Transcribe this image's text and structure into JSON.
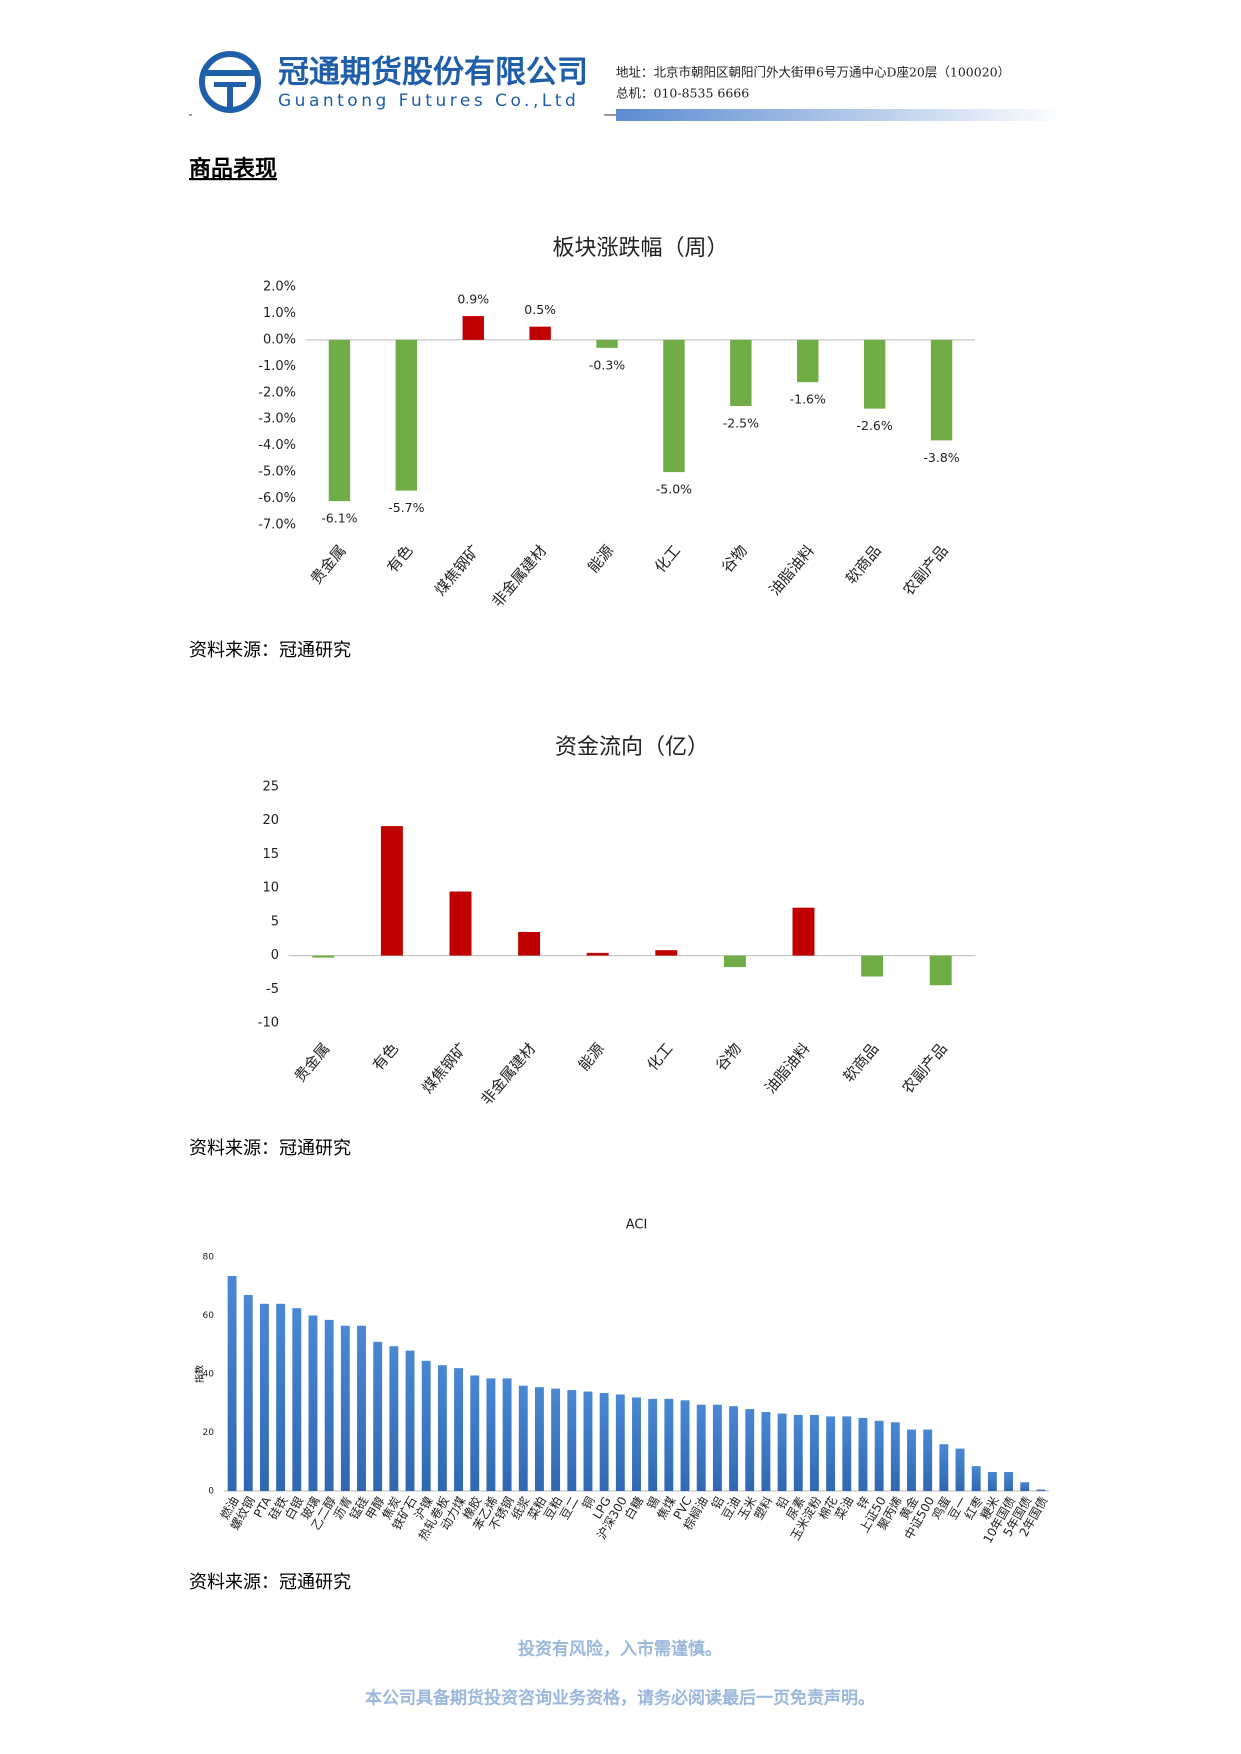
{
  "header": {
    "company_cn": "冠通期货股份有限公司",
    "company_en": "Guantong Futures Co.,Ltd",
    "address": "地址：北京市朝阳区朝阳门外大街甲6号万通中心D座20层（100020）",
    "phone": "总机：010-8535 6666"
  },
  "section_title": "商品表现",
  "sources": [
    "资料来源：冠通研究",
    "资料来源：冠通研究",
    "资料来源：冠通研究"
  ],
  "footer": [
    "投资有风险，入市需谨慎。",
    "本公司具备期货投资咨询业务资格，请务必阅读最后一页免责声明。"
  ],
  "chart_data": [
    {
      "type": "bar",
      "title": "板块涨跌幅（周）",
      "categories": [
        "贵金属",
        "有色",
        "煤焦钢矿",
        "非金属建材",
        "能源",
        "化工",
        "谷物",
        "油脂油料",
        "软商品",
        "农副产品"
      ],
      "values": [
        -6.1,
        -5.7,
        0.9,
        0.5,
        -0.3,
        -5.0,
        -2.5,
        -1.6,
        -2.6,
        -3.8
      ],
      "value_labels": [
        "-6.1%",
        "-5.7%",
        "0.9%",
        "0.5%",
        "-0.3%",
        "-5.0%",
        "-2.5%",
        "-1.6%",
        "-2.6%",
        "-3.8%"
      ],
      "positive_color": "#c00000",
      "negative_color": "#70ad47",
      "ylim": [
        -7,
        2
      ],
      "yticks": [
        {
          "value": 2,
          "label": "2.0%"
        },
        {
          "value": 1,
          "label": "1.0%"
        },
        {
          "value": 0,
          "label": "0.0%"
        },
        {
          "value": -1,
          "label": "-1.0%"
        },
        {
          "value": -2,
          "label": "-2.0%"
        },
        {
          "value": -3,
          "label": "-3.0%"
        },
        {
          "value": -4,
          "label": "-4.0%"
        },
        {
          "value": -5,
          "label": "-5.0%"
        },
        {
          "value": -6,
          "label": "-6.0%"
        },
        {
          "value": -7,
          "label": "-7.0%"
        }
      ],
      "grid": false
    },
    {
      "type": "bar",
      "title": "资金流向（亿）",
      "categories": [
        "贵金属",
        "有色",
        "煤焦钢矿",
        "非金属建材",
        "能源",
        "化工",
        "谷物",
        "油脂油料",
        "软商品",
        "农副产品"
      ],
      "values": [
        -0.3,
        19.2,
        9.5,
        3.5,
        0.4,
        0.8,
        -1.7,
        7.1,
        -3.1,
        -4.4
      ],
      "positive_color": "#c00000",
      "negative_color": "#70ad47",
      "ylim": [
        -10,
        25
      ],
      "yticks": [
        25,
        20,
        15,
        10,
        5,
        0,
        -5,
        -10
      ],
      "grid": false
    },
    {
      "type": "bar",
      "title": "ACI",
      "y_label": "指数",
      "categories": [
        "燃油",
        "螺纹钢",
        "PTA",
        "硅铁",
        "白银",
        "玻璃",
        "乙二醇",
        "沥青",
        "锰硅",
        "甲醇",
        "焦炭",
        "铁矿石",
        "沪镍",
        "热轧卷板",
        "动力煤",
        "橡胶",
        "苯乙烯",
        "不锈钢",
        "纸浆",
        "菜粕",
        "豆粕",
        "豆二",
        "铜",
        "LPG",
        "沪深300",
        "白糖",
        "锡",
        "焦煤",
        "PVC",
        "棕榈油",
        "铝",
        "豆油",
        "玉米",
        "塑料",
        "铅",
        "尿素",
        "玉米淀粉",
        "棉花",
        "菜油",
        "锌",
        "上证50",
        "聚丙烯",
        "黄金",
        "中证500",
        "鸡蛋",
        "豆一",
        "红枣",
        "粳米",
        "10年国债",
        "5年国债",
        "2年国债"
      ],
      "values": [
        73.5,
        67,
        64,
        64,
        62.5,
        60,
        58.5,
        56.5,
        56.5,
        51,
        49.5,
        48,
        44.5,
        43,
        42,
        39.5,
        38.5,
        38.5,
        36,
        35.5,
        35,
        34.5,
        34,
        33.5,
        33,
        32,
        31.5,
        31.5,
        31,
        29.5,
        29.5,
        29,
        28,
        27,
        26.5,
        26,
        26,
        25.5,
        25.5,
        25,
        24,
        23.5,
        21,
        21,
        16,
        14.5,
        8.5,
        6.5,
        6.5,
        3,
        0.5
      ],
      "color": "#3d7cc9",
      "ylim": [
        0,
        80
      ],
      "yticks": [
        80,
        60,
        40,
        20,
        0
      ],
      "grid": false
    }
  ]
}
